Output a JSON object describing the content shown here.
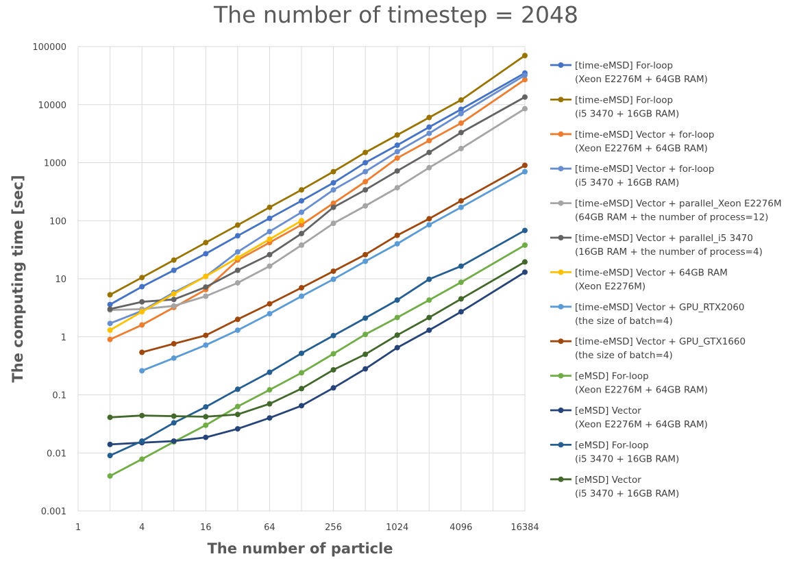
{
  "chart_data": {
    "type": "line",
    "title": "The number of timestep = 2048",
    "xlabel": "The number of particle",
    "ylabel": "The computing time [sec]",
    "x_scale": "log2",
    "y_scale": "log10",
    "xlim": [
      1,
      16384
    ],
    "ylim": [
      0.001,
      100000
    ],
    "x_tick_labels": [
      "1",
      "4",
      "16",
      "64",
      "256",
      "1024",
      "4096",
      "16384"
    ],
    "y_tick_labels": [
      "0.001",
      "0.01",
      "0.1",
      "1",
      "10",
      "100",
      "1000",
      "10000",
      "100000"
    ],
    "grid": true,
    "legend_position": "right",
    "x": [
      2,
      4,
      8,
      16,
      32,
      64,
      128,
      256,
      512,
      1024,
      2048,
      4096,
      16384
    ],
    "series": [
      {
        "name_lines": [
          "[time-eMSD] For-loop",
          "(Xeon E2276M + 64GB RAM)"
        ],
        "color": "#4472C4",
        "values": [
          3.6,
          7.3,
          14,
          27,
          55,
          110,
          220,
          450,
          1000,
          2000,
          4100,
          8300,
          35000
        ]
      },
      {
        "name_lines": [
          "[time-eMSD] For-loop",
          "(i5 3470 + 16GB RAM)"
        ],
        "color": "#997300",
        "values": [
          5.3,
          10.5,
          21,
          42,
          84,
          170,
          340,
          700,
          1500,
          3000,
          6000,
          12000,
          70000
        ]
      },
      {
        "name_lines": [
          "[time-eMSD] Vector + for-loop",
          "(Xeon E2276M + 64GB RAM)"
        ],
        "color": "#ED7D31",
        "values": [
          0.9,
          1.6,
          3.2,
          6.5,
          21,
          42,
          85,
          200,
          470,
          1200,
          2400,
          4800,
          27000
        ]
      },
      {
        "name_lines": [
          "[time-eMSD] Vector + for-loop",
          "(i5 3470 + 16GB RAM)"
        ],
        "color": "#698ED0",
        "values": [
          1.7,
          2.8,
          5.8,
          11,
          29,
          65,
          140,
          340,
          700,
          1550,
          3200,
          7000,
          32000
        ]
      },
      {
        "name_lines": [
          "[time-eMSD] Vector + parallel_Xeon E2276M",
          "(64GB RAM + the number of process=12)"
        ],
        "color": "#A5A5A5",
        "values": [
          2.9,
          3,
          3.4,
          5,
          8.5,
          16.5,
          38,
          90,
          180,
          370,
          820,
          1750,
          8500
        ]
      },
      {
        "name_lines": [
          "[time-eMSD] Vector + parallel_i5 3470",
          "(16GB RAM + the number of process=4)"
        ],
        "color": "#636363",
        "values": [
          3,
          4,
          4.4,
          7.2,
          14,
          26,
          60,
          170,
          340,
          720,
          1500,
          3300,
          13500
        ]
      },
      {
        "name_lines": [
          "[time-eMSD] Vector + 64GB RAM",
          "(Xeon E2276M)"
        ],
        "color": "#FFC000",
        "values": [
          1.3,
          2.7,
          5.5,
          11,
          23,
          48,
          100,
          null,
          null,
          null,
          null,
          null,
          null
        ]
      },
      {
        "name_lines": [
          "[time-eMSD] Vector + GPU_RTX2060",
          "(the size of batch=4)"
        ],
        "color": "#5B9BD5",
        "values": [
          null,
          0.26,
          0.43,
          0.72,
          1.3,
          2.5,
          5,
          9.8,
          20,
          40,
          85,
          170,
          700
        ]
      },
      {
        "name_lines": [
          "[time-eMSD] Vector + GPU_GTX1660",
          "(the size of batch=4)"
        ],
        "color": "#9E480E",
        "values": [
          null,
          0.54,
          0.76,
          1.06,
          2,
          3.7,
          7,
          13.5,
          26,
          56,
          108,
          220,
          900
        ]
      },
      {
        "name_lines": [
          "[eMSD] For-loop",
          "(Xeon E2276M + 64GB RAM)"
        ],
        "color": "#70AD47",
        "values": [
          0.004,
          0.0078,
          0.0155,
          0.03,
          0.063,
          0.122,
          0.24,
          0.51,
          1.1,
          2.15,
          4.3,
          8.7,
          38
        ]
      },
      {
        "name_lines": [
          "[eMSD] Vector",
          "(Xeon E2276M + 64GB RAM)"
        ],
        "color": "#264478",
        "values": [
          0.014,
          0.015,
          0.016,
          0.0185,
          0.026,
          0.04,
          0.065,
          0.132,
          0.28,
          0.65,
          1.3,
          2.7,
          13
        ]
      },
      {
        "name_lines": [
          "[eMSD] For-loop",
          "(i5 3470 + 16GB RAM)"
        ],
        "color": "#255E91",
        "values": [
          0.009,
          0.016,
          0.033,
          0.062,
          0.125,
          0.245,
          0.52,
          1.05,
          2.1,
          4.3,
          9.8,
          16.5,
          68
        ]
      },
      {
        "name_lines": [
          "[eMSD] Vector",
          "(i5 3470 + 16GB RAM)"
        ],
        "color": "#43682B",
        "values": [
          0.041,
          0.044,
          0.043,
          0.042,
          0.046,
          0.07,
          0.128,
          0.27,
          0.5,
          1.07,
          2.15,
          4.5,
          19.5
        ]
      }
    ]
  }
}
